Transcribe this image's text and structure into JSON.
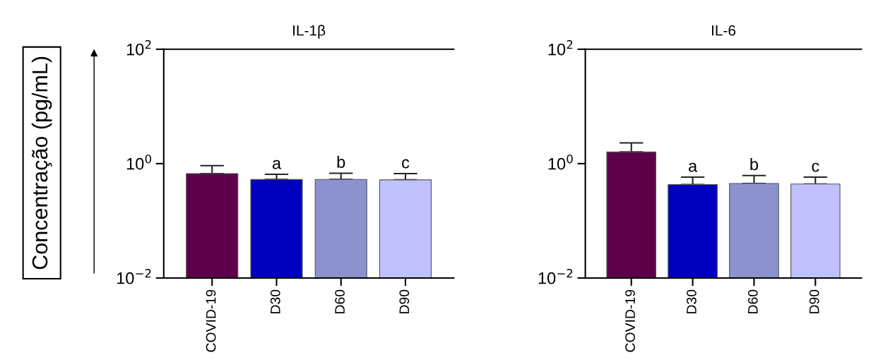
{
  "chart_data": [
    {
      "type": "bar",
      "title": "IL-1β",
      "ylabel": "Concentração (pg/mL)",
      "categories": [
        "COVID-19",
        "D30",
        "D60",
        "D90"
      ],
      "values": [
        0.67,
        0.53,
        0.53,
        0.52
      ],
      "errors": [
        [
          0.67,
          0.92
        ],
        [
          0.53,
          0.65
        ],
        [
          0.53,
          0.68
        ],
        [
          0.52,
          0.67
        ]
      ],
      "colors": [
        "#5e0049",
        "#0000c0",
        "#8b92cd",
        "#c0c0fc"
      ],
      "log": "y",
      "ylim": [
        0.01,
        100
      ],
      "yticks": [
        {
          "value": 0.01,
          "label": "10$^{−2}$"
        },
        {
          "value": 1,
          "label": "10$^{0}$"
        },
        {
          "value": 100,
          "label": "10$^{2}$"
        }
      ],
      "annotations": [
        "a",
        "b",
        "c"
      ],
      "grid": false,
      "legend": false
    },
    {
      "type": "bar",
      "title": "IL-6",
      "categories": [
        "COVID-19",
        "D30",
        "D60",
        "D90"
      ],
      "values": [
        1.6,
        0.43,
        0.45,
        0.44
      ],
      "errors": [
        [
          1.6,
          2.3
        ],
        [
          0.43,
          0.58
        ],
        [
          0.45,
          0.62
        ],
        [
          0.44,
          0.58
        ]
      ],
      "colors": [
        "#5e0049",
        "#0000c0",
        "#8b92cd",
        "#c0c0fc"
      ],
      "log": "y",
      "ylim": [
        0.01,
        100
      ],
      "yticks": [
        {
          "value": 0.01,
          "label": "10$^{−2}$"
        },
        {
          "value": 1,
          "label": "10$^{0}$"
        },
        {
          "value": 100,
          "label": "10$^{2}$"
        }
      ],
      "annotations": [
        "a",
        "b",
        "c"
      ],
      "grid": false,
      "legend": false
    }
  ]
}
